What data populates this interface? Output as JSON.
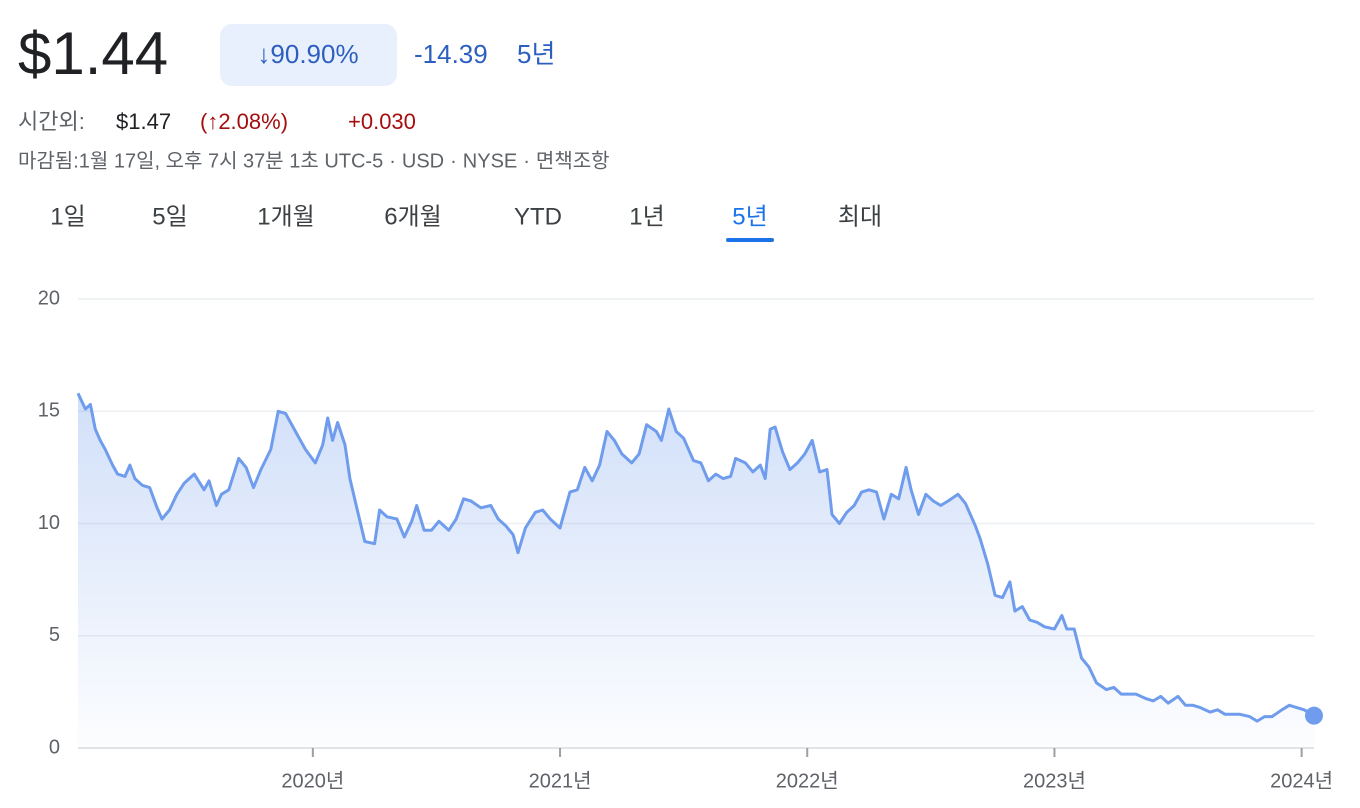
{
  "header": {
    "price": "$1.44",
    "change_percent": "↓90.90%",
    "change_value": "-14.39",
    "change_period": "5년",
    "after_hours": {
      "label": "시간외:",
      "price": "$1.47",
      "change_percent": "(↑2.08%)",
      "change_value": "+0.030"
    },
    "status": {
      "items": [
        "마감됨:1월 17일, 오후 7시 37분 1초 UTC-5",
        "USD",
        "NYSE",
        "면책조항"
      ],
      "separator": "·"
    }
  },
  "tabs": {
    "items": [
      "1일",
      "5일",
      "1개월",
      "6개월",
      "YTD",
      "1년",
      "5년",
      "최대"
    ],
    "selected": "5년"
  },
  "chart_data": {
    "type": "line",
    "color": "#6f9cec",
    "grid": true,
    "xlim": [
      2019.05,
      2024.05
    ],
    "ylim": [
      0,
      20
    ],
    "yticks": [
      0,
      5,
      10,
      15,
      20
    ],
    "xticks": [
      {
        "value": 2020,
        "label": "2020년"
      },
      {
        "value": 2021,
        "label": "2021년"
      },
      {
        "value": 2022,
        "label": "2022년"
      },
      {
        "value": 2023,
        "label": "2023년"
      },
      {
        "value": 2024,
        "label": "2024년"
      }
    ],
    "x": [
      2019.05,
      2019.08,
      2019.1,
      2019.12,
      2019.14,
      2019.16,
      2019.19,
      2019.21,
      2019.24,
      2019.26,
      2019.28,
      2019.31,
      2019.34,
      2019.37,
      2019.39,
      2019.42,
      2019.45,
      2019.48,
      2019.52,
      2019.56,
      2019.58,
      2019.61,
      2019.63,
      2019.66,
      2019.7,
      2019.73,
      2019.76,
      2019.79,
      2019.83,
      2019.86,
      2019.89,
      2019.93,
      2019.97,
      2020.01,
      2020.04,
      2020.06,
      2020.08,
      2020.1,
      2020.13,
      2020.15,
      2020.18,
      2020.21,
      2020.25,
      2020.27,
      2020.3,
      2020.34,
      2020.37,
      2020.4,
      2020.42,
      2020.45,
      2020.48,
      2020.51,
      2020.55,
      2020.58,
      2020.61,
      2020.64,
      2020.68,
      2020.72,
      2020.75,
      2020.78,
      2020.81,
      2020.83,
      2020.86,
      2020.9,
      2020.93,
      2020.96,
      2021.0,
      2021.04,
      2021.07,
      2021.1,
      2021.13,
      2021.16,
      2021.19,
      2021.22,
      2021.25,
      2021.29,
      2021.32,
      2021.35,
      2021.39,
      2021.41,
      2021.44,
      2021.47,
      2021.5,
      2021.54,
      2021.57,
      2021.6,
      2021.63,
      2021.66,
      2021.69,
      2021.71,
      2021.75,
      2021.78,
      2021.81,
      2021.83,
      2021.85,
      2021.87,
      2021.9,
      2021.93,
      2021.96,
      2021.99,
      2022.02,
      2022.05,
      2022.08,
      2022.1,
      2022.13,
      2022.16,
      2022.19,
      2022.22,
      2022.25,
      2022.28,
      2022.31,
      2022.34,
      2022.37,
      2022.4,
      2022.42,
      2022.45,
      2022.48,
      2022.51,
      2022.54,
      2022.57,
      2022.61,
      2022.64,
      2022.68,
      2022.7,
      2022.73,
      2022.76,
      2022.79,
      2022.82,
      2022.84,
      2022.87,
      2022.9,
      2022.93,
      2022.96,
      2023.0,
      2023.03,
      2023.05,
      2023.08,
      2023.11,
      2023.14,
      2023.17,
      2023.21,
      2023.24,
      2023.27,
      2023.3,
      2023.33,
      2023.37,
      2023.4,
      2023.43,
      2023.46,
      2023.5,
      2023.53,
      2023.56,
      2023.59,
      2023.63,
      2023.66,
      2023.69,
      2023.72,
      2023.75,
      2023.79,
      2023.82,
      2023.85,
      2023.88,
      2023.92,
      2023.95,
      2023.98,
      2024.01,
      2024.05
    ],
    "values": [
      15.8,
      15.1,
      15.3,
      14.2,
      13.7,
      13.3,
      12.6,
      12.2,
      12.1,
      12.6,
      12.0,
      11.7,
      11.6,
      10.7,
      10.2,
      10.6,
      11.3,
      11.8,
      12.2,
      11.5,
      11.9,
      10.8,
      11.3,
      11.5,
      12.9,
      12.5,
      11.6,
      12.4,
      13.3,
      15.0,
      14.9,
      14.1,
      13.3,
      12.7,
      13.5,
      14.7,
      13.7,
      14.5,
      13.5,
      12.0,
      10.6,
      9.2,
      9.1,
      10.6,
      10.3,
      10.2,
      9.4,
      10.1,
      10.8,
      9.7,
      9.7,
      10.1,
      9.7,
      10.2,
      11.1,
      11.0,
      10.7,
      10.8,
      10.2,
      9.9,
      9.5,
      8.7,
      9.8,
      10.5,
      10.6,
      10.2,
      9.8,
      11.4,
      11.5,
      12.5,
      11.9,
      12.6,
      14.1,
      13.7,
      13.1,
      12.7,
      13.1,
      14.4,
      14.1,
      13.7,
      15.1,
      14.1,
      13.8,
      12.8,
      12.7,
      11.9,
      12.2,
      12.0,
      12.1,
      12.9,
      12.7,
      12.3,
      12.6,
      12.0,
      14.2,
      14.3,
      13.2,
      12.4,
      12.7,
      13.1,
      13.7,
      12.3,
      12.4,
      10.4,
      10.0,
      10.5,
      10.8,
      11.4,
      11.5,
      11.4,
      10.2,
      11.3,
      11.1,
      12.5,
      11.5,
      10.4,
      11.3,
      11.0,
      10.8,
      11.0,
      11.3,
      10.9,
      9.9,
      9.3,
      8.2,
      6.8,
      6.7,
      7.4,
      6.1,
      6.3,
      5.7,
      5.6,
      5.4,
      5.3,
      5.9,
      5.3,
      5.3,
      4.0,
      3.6,
      2.9,
      2.6,
      2.7,
      2.4,
      2.4,
      2.4,
      2.2,
      2.1,
      2.3,
      2.0,
      2.3,
      1.9,
      1.9,
      1.8,
      1.6,
      1.7,
      1.5,
      1.5,
      1.5,
      1.4,
      1.2,
      1.4,
      1.4,
      1.7,
      1.9,
      1.8,
      1.7,
      1.44
    ]
  }
}
